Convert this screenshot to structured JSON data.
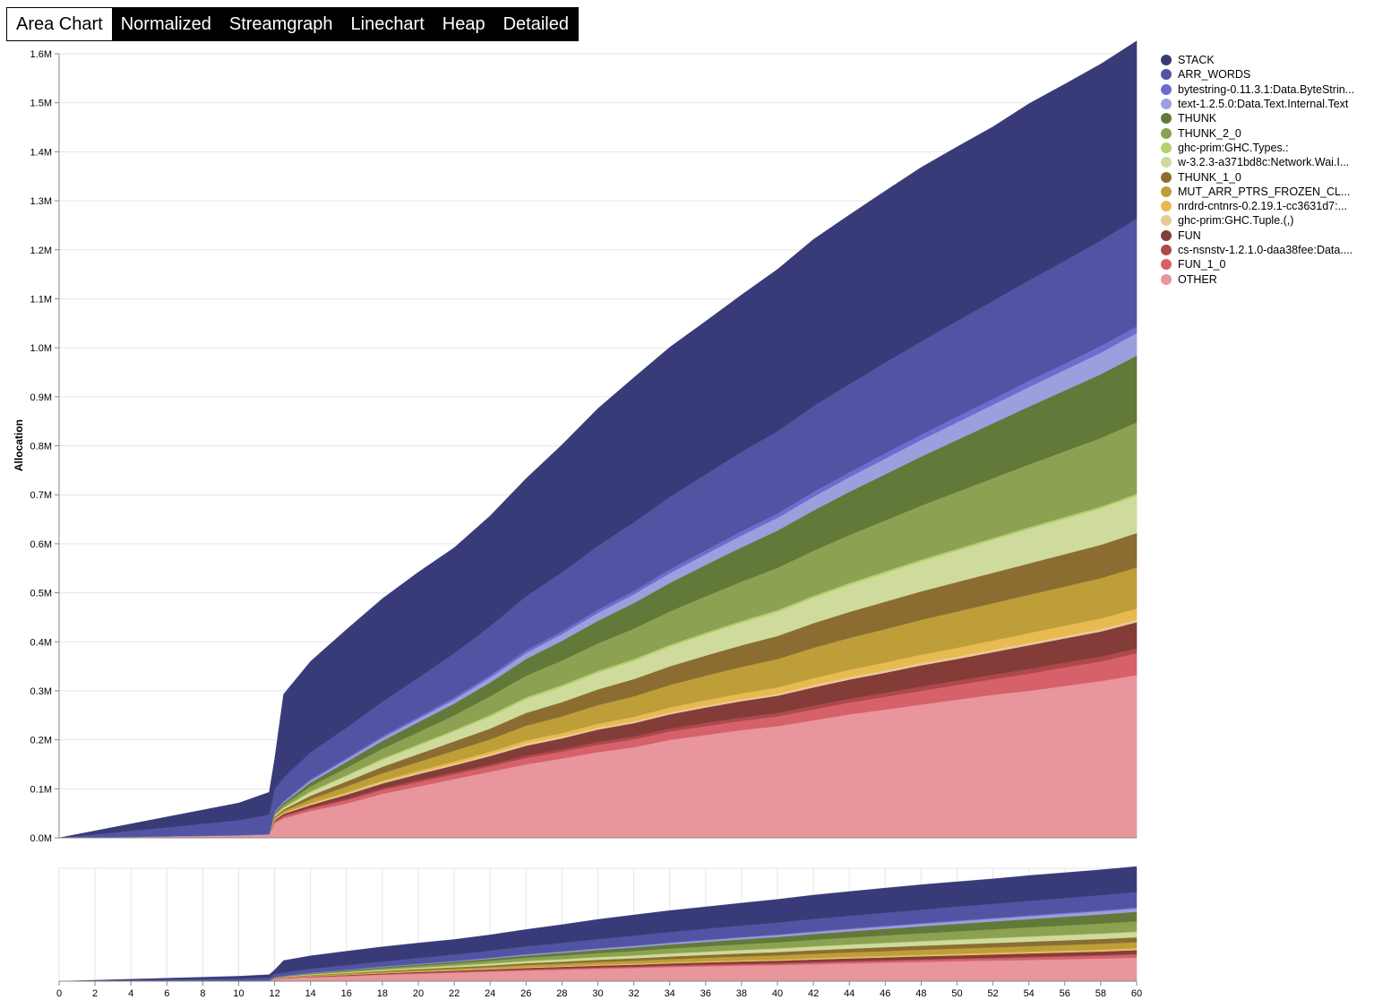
{
  "tabs": [
    {
      "label": "Area Chart",
      "active": true
    },
    {
      "label": "Normalized",
      "active": false
    },
    {
      "label": "Streamgraph",
      "active": false
    },
    {
      "label": "Linechart",
      "active": false
    },
    {
      "label": "Heap",
      "active": false
    },
    {
      "label": "Detailed",
      "active": false
    }
  ],
  "chart_data": {
    "type": "area",
    "stacked": true,
    "ylabel": "Allocation",
    "xlabel": "",
    "xlim": [
      0,
      60
    ],
    "ylim": [
      0,
      1600000
    ],
    "y_ticks": [
      "0.0M",
      "0.1M",
      "0.2M",
      "0.3M",
      "0.4M",
      "0.5M",
      "0.6M",
      "0.7M",
      "0.8M",
      "0.9M",
      "1.0M",
      "1.1M",
      "1.2M",
      "1.3M",
      "1.4M",
      "1.5M",
      "1.6M"
    ],
    "x_ticks": [
      "0",
      "2",
      "4",
      "6",
      "8",
      "10",
      "12",
      "14",
      "16",
      "18",
      "20",
      "22",
      "24",
      "26",
      "28",
      "30",
      "32",
      "34",
      "36",
      "38",
      "40",
      "42",
      "44",
      "46",
      "48",
      "50",
      "52",
      "54",
      "56",
      "58",
      "60"
    ],
    "grid": true,
    "legend_position": "right",
    "overview_chart": true,
    "x": [
      0,
      10,
      11.7,
      12,
      12.5,
      14,
      16,
      18,
      20,
      22,
      24,
      26,
      28,
      30,
      32,
      34,
      36,
      38,
      40,
      42,
      44,
      46,
      48,
      50,
      52,
      54,
      56,
      58,
      60
    ],
    "series": [
      {
        "name": "OTHER",
        "color": "#e8959c",
        "values": [
          0,
          5000,
          7000,
          30000,
          40000,
          55000,
          70000,
          90000,
          105000,
          120000,
          135000,
          150000,
          162000,
          175000,
          185000,
          200000,
          210000,
          220000,
          228000,
          240000,
          252000,
          262000,
          272000,
          282000,
          292000,
          300000,
          310000,
          320000,
          332000
        ]
      },
      {
        "name": "FUN_1_0",
        "color": "#d6616b",
        "values": [
          0,
          0,
          0,
          3000,
          4000,
          5000,
          7000,
          8000,
          9000,
          10000,
          11000,
          13000,
          14000,
          15000,
          16000,
          17000,
          18000,
          19000,
          20000,
          22000,
          24000,
          26000,
          28000,
          30000,
          32000,
          35000,
          38000,
          40000,
          45000
        ]
      },
      {
        "name": "cs-nsnstv-1.2.1.0-daa38fee:Data....",
        "color": "#ad494a",
        "values": [
          0,
          0,
          0,
          1000,
          2000,
          2000,
          3000,
          3000,
          4000,
          4000,
          4000,
          5000,
          5000,
          6000,
          6000,
          6000,
          7000,
          7000,
          7000,
          8000,
          8000,
          8000,
          9000,
          9000,
          9000,
          10000,
          10000,
          10000,
          10000
        ]
      },
      {
        "name": "FUN",
        "color": "#843c39",
        "values": [
          0,
          0,
          0,
          2000,
          3000,
          5000,
          8000,
          10000,
          12000,
          14000,
          17000,
          20000,
          22000,
          25000,
          27000,
          29000,
          31000,
          33000,
          35000,
          37000,
          39000,
          41000,
          43000,
          44000,
          46000,
          48000,
          49000,
          51000,
          53000
        ]
      },
      {
        "name": "ghc-prim:GHC.Tuple.(,)",
        "color": "#e7cb94",
        "values": [
          0,
          0,
          0,
          1000,
          1000,
          2000,
          2000,
          3000,
          3000,
          3000,
          4000,
          5000,
          4000,
          4000,
          4000,
          4000,
          4000,
          4000,
          4000,
          5000,
          5000,
          5000,
          5000,
          5000,
          5000,
          5000,
          5000,
          5000,
          5000
        ]
      },
      {
        "name": "nrdrd-cntnrs-0.2.19.1-cc3631d7:...",
        "color": "#e7ba52",
        "values": [
          0,
          0,
          0,
          1000,
          1000,
          2000,
          3000,
          3000,
          4000,
          5000,
          5000,
          6000,
          7000,
          8000,
          9000,
          10000,
          11000,
          12000,
          13000,
          14000,
          15000,
          16000,
          17000,
          18000,
          19000,
          20000,
          21000,
          22000,
          23000
        ]
      },
      {
        "name": "MUT_ARR_PTRS_FROZEN_CL...",
        "color": "#bd9e39",
        "values": [
          0,
          0,
          0,
          3000,
          4000,
          8000,
          12000,
          15000,
          18000,
          22000,
          25000,
          30000,
          34000,
          38000,
          42000,
          46000,
          50000,
          54000,
          58000,
          62000,
          65000,
          68000,
          71000,
          74000,
          76000,
          78000,
          80000,
          82000,
          84000
        ]
      },
      {
        "name": "THUNK_1_0",
        "color": "#8c6d31",
        "values": [
          0,
          0,
          0,
          2000,
          3000,
          7000,
          10000,
          13000,
          16000,
          19000,
          22000,
          26000,
          29000,
          32000,
          35000,
          38000,
          41000,
          44000,
          47000,
          50000,
          53000,
          56000,
          58000,
          60000,
          62000,
          64000,
          66000,
          68000,
          70000
        ]
      },
      {
        "name": "w-3.2.3-a371bd8c:Network.Wai.I...",
        "color": "#cedb9c",
        "values": [
          0,
          0,
          0,
          2000,
          3000,
          7000,
          11000,
          14000,
          17000,
          20000,
          24000,
          28000,
          31000,
          34000,
          37000,
          40000,
          43000,
          46000,
          49000,
          52000,
          55000,
          58000,
          61000,
          64000,
          67000,
          70000,
          72000,
          74000,
          76000
        ]
      },
      {
        "name": "ghc-prim:GHC.Types.:",
        "color": "#b5cf6b",
        "values": [
          0,
          0,
          0,
          1000,
          1000,
          2000,
          2000,
          3000,
          3000,
          3000,
          4000,
          4000,
          4000,
          4000,
          4000,
          4000,
          4000,
          4000,
          4000,
          4000,
          4000,
          4000,
          4000,
          4000,
          4000,
          4000,
          4000,
          4000,
          4000
        ]
      },
      {
        "name": "THUNK_2_0",
        "color": "#8ca252",
        "values": [
          0,
          0,
          0,
          3000,
          5000,
          10000,
          15000,
          20000,
          25000,
          30000,
          38000,
          44000,
          50000,
          56000,
          62000,
          68000,
          74000,
          80000,
          86000,
          92000,
          98000,
          104000,
          110000,
          116000,
          122000,
          128000,
          134000,
          140000,
          146000
        ]
      },
      {
        "name": "THUNK",
        "color": "#637939",
        "values": [
          0,
          0,
          0,
          3000,
          4000,
          8000,
          12000,
          16000,
          20000,
          24000,
          28000,
          34000,
          40000,
          46000,
          52000,
          58000,
          64000,
          70000,
          76000,
          82000,
          88000,
          94000,
          100000,
          106000,
          112000,
          118000,
          124000,
          130000,
          136000
        ]
      },
      {
        "name": "text-1.2.5.0:Data.Text.Internal.Text",
        "color": "#9c9ede",
        "values": [
          0,
          0,
          0,
          1000,
          2000,
          4000,
          5000,
          6000,
          7000,
          8000,
          10000,
          12000,
          14000,
          16000,
          18000,
          20000,
          22000,
          24000,
          26000,
          28000,
          30000,
          32000,
          34000,
          36000,
          38000,
          40000,
          42000,
          44000,
          46000
        ]
      },
      {
        "name": "bytestring-0.11.3.1:Data.ByteStrin...",
        "color": "#6b6ecf",
        "values": [
          0,
          1000,
          1000,
          2000,
          2000,
          3000,
          3000,
          4000,
          4000,
          5000,
          5000,
          6000,
          6000,
          7000,
          7000,
          8000,
          8000,
          9000,
          9000,
          10000,
          10000,
          11000,
          11000,
          12000,
          12000,
          13000,
          13000,
          14000,
          14000
        ]
      },
      {
        "name": "ARR_WORDS",
        "color": "#5254a3",
        "values": [
          0,
          30000,
          40000,
          45000,
          48000,
          55000,
          62000,
          70000,
          80000,
          90000,
          100000,
          110000,
          120000,
          130000,
          140000,
          148000,
          155000,
          162000,
          168000,
          175000,
          180000,
          185000,
          190000,
          195000,
          200000,
          205000,
          210000,
          215000,
          220000
        ]
      },
      {
        "name": "STACK",
        "color": "#393b79",
        "values": [
          0,
          35000,
          45000,
          60000,
          170000,
          185000,
          200000,
          210000,
          215000,
          215000,
          225000,
          240000,
          260000,
          280000,
          295000,
          305000,
          312000,
          320000,
          330000,
          340000,
          345000,
          350000,
          355000,
          355000,
          355000,
          360000,
          360000,
          360000,
          362000
        ]
      }
    ]
  }
}
